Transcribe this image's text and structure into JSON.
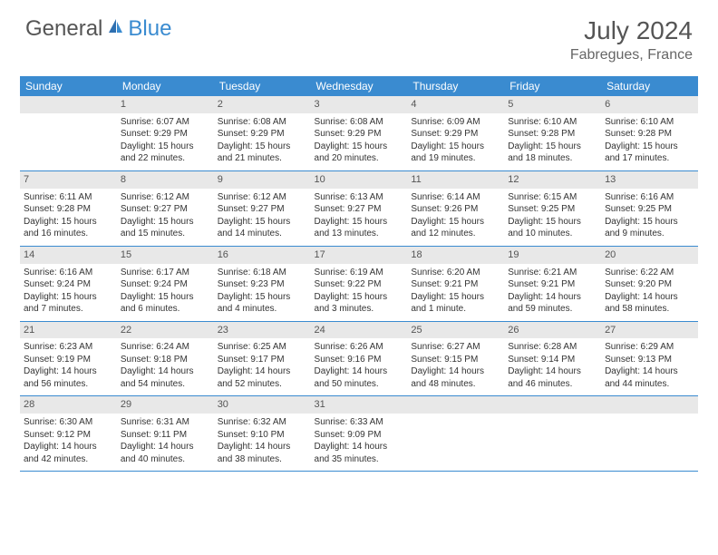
{
  "logo": {
    "general": "General",
    "blue": "Blue"
  },
  "title": "July 2024",
  "location": "Fabregues, France",
  "colors": {
    "header_bg": "#3a8bd0",
    "header_text": "#ffffff",
    "daynum_bg": "#e8e8e8",
    "border": "#3a8bd0",
    "body_text": "#333333",
    "title_text": "#555555"
  },
  "weekdays": [
    "Sunday",
    "Monday",
    "Tuesday",
    "Wednesday",
    "Thursday",
    "Friday",
    "Saturday"
  ],
  "weeks": [
    [
      {
        "n": "",
        "sr": "",
        "ss": "",
        "dl": ""
      },
      {
        "n": "1",
        "sr": "Sunrise: 6:07 AM",
        "ss": "Sunset: 9:29 PM",
        "dl": "Daylight: 15 hours and 22 minutes."
      },
      {
        "n": "2",
        "sr": "Sunrise: 6:08 AM",
        "ss": "Sunset: 9:29 PM",
        "dl": "Daylight: 15 hours and 21 minutes."
      },
      {
        "n": "3",
        "sr": "Sunrise: 6:08 AM",
        "ss": "Sunset: 9:29 PM",
        "dl": "Daylight: 15 hours and 20 minutes."
      },
      {
        "n": "4",
        "sr": "Sunrise: 6:09 AM",
        "ss": "Sunset: 9:29 PM",
        "dl": "Daylight: 15 hours and 19 minutes."
      },
      {
        "n": "5",
        "sr": "Sunrise: 6:10 AM",
        "ss": "Sunset: 9:28 PM",
        "dl": "Daylight: 15 hours and 18 minutes."
      },
      {
        "n": "6",
        "sr": "Sunrise: 6:10 AM",
        "ss": "Sunset: 9:28 PM",
        "dl": "Daylight: 15 hours and 17 minutes."
      }
    ],
    [
      {
        "n": "7",
        "sr": "Sunrise: 6:11 AM",
        "ss": "Sunset: 9:28 PM",
        "dl": "Daylight: 15 hours and 16 minutes."
      },
      {
        "n": "8",
        "sr": "Sunrise: 6:12 AM",
        "ss": "Sunset: 9:27 PM",
        "dl": "Daylight: 15 hours and 15 minutes."
      },
      {
        "n": "9",
        "sr": "Sunrise: 6:12 AM",
        "ss": "Sunset: 9:27 PM",
        "dl": "Daylight: 15 hours and 14 minutes."
      },
      {
        "n": "10",
        "sr": "Sunrise: 6:13 AM",
        "ss": "Sunset: 9:27 PM",
        "dl": "Daylight: 15 hours and 13 minutes."
      },
      {
        "n": "11",
        "sr": "Sunrise: 6:14 AM",
        "ss": "Sunset: 9:26 PM",
        "dl": "Daylight: 15 hours and 12 minutes."
      },
      {
        "n": "12",
        "sr": "Sunrise: 6:15 AM",
        "ss": "Sunset: 9:25 PM",
        "dl": "Daylight: 15 hours and 10 minutes."
      },
      {
        "n": "13",
        "sr": "Sunrise: 6:16 AM",
        "ss": "Sunset: 9:25 PM",
        "dl": "Daylight: 15 hours and 9 minutes."
      }
    ],
    [
      {
        "n": "14",
        "sr": "Sunrise: 6:16 AM",
        "ss": "Sunset: 9:24 PM",
        "dl": "Daylight: 15 hours and 7 minutes."
      },
      {
        "n": "15",
        "sr": "Sunrise: 6:17 AM",
        "ss": "Sunset: 9:24 PM",
        "dl": "Daylight: 15 hours and 6 minutes."
      },
      {
        "n": "16",
        "sr": "Sunrise: 6:18 AM",
        "ss": "Sunset: 9:23 PM",
        "dl": "Daylight: 15 hours and 4 minutes."
      },
      {
        "n": "17",
        "sr": "Sunrise: 6:19 AM",
        "ss": "Sunset: 9:22 PM",
        "dl": "Daylight: 15 hours and 3 minutes."
      },
      {
        "n": "18",
        "sr": "Sunrise: 6:20 AM",
        "ss": "Sunset: 9:21 PM",
        "dl": "Daylight: 15 hours and 1 minute."
      },
      {
        "n": "19",
        "sr": "Sunrise: 6:21 AM",
        "ss": "Sunset: 9:21 PM",
        "dl": "Daylight: 14 hours and 59 minutes."
      },
      {
        "n": "20",
        "sr": "Sunrise: 6:22 AM",
        "ss": "Sunset: 9:20 PM",
        "dl": "Daylight: 14 hours and 58 minutes."
      }
    ],
    [
      {
        "n": "21",
        "sr": "Sunrise: 6:23 AM",
        "ss": "Sunset: 9:19 PM",
        "dl": "Daylight: 14 hours and 56 minutes."
      },
      {
        "n": "22",
        "sr": "Sunrise: 6:24 AM",
        "ss": "Sunset: 9:18 PM",
        "dl": "Daylight: 14 hours and 54 minutes."
      },
      {
        "n": "23",
        "sr": "Sunrise: 6:25 AM",
        "ss": "Sunset: 9:17 PM",
        "dl": "Daylight: 14 hours and 52 minutes."
      },
      {
        "n": "24",
        "sr": "Sunrise: 6:26 AM",
        "ss": "Sunset: 9:16 PM",
        "dl": "Daylight: 14 hours and 50 minutes."
      },
      {
        "n": "25",
        "sr": "Sunrise: 6:27 AM",
        "ss": "Sunset: 9:15 PM",
        "dl": "Daylight: 14 hours and 48 minutes."
      },
      {
        "n": "26",
        "sr": "Sunrise: 6:28 AM",
        "ss": "Sunset: 9:14 PM",
        "dl": "Daylight: 14 hours and 46 minutes."
      },
      {
        "n": "27",
        "sr": "Sunrise: 6:29 AM",
        "ss": "Sunset: 9:13 PM",
        "dl": "Daylight: 14 hours and 44 minutes."
      }
    ],
    [
      {
        "n": "28",
        "sr": "Sunrise: 6:30 AM",
        "ss": "Sunset: 9:12 PM",
        "dl": "Daylight: 14 hours and 42 minutes."
      },
      {
        "n": "29",
        "sr": "Sunrise: 6:31 AM",
        "ss": "Sunset: 9:11 PM",
        "dl": "Daylight: 14 hours and 40 minutes."
      },
      {
        "n": "30",
        "sr": "Sunrise: 6:32 AM",
        "ss": "Sunset: 9:10 PM",
        "dl": "Daylight: 14 hours and 38 minutes."
      },
      {
        "n": "31",
        "sr": "Sunrise: 6:33 AM",
        "ss": "Sunset: 9:09 PM",
        "dl": "Daylight: 14 hours and 35 minutes."
      },
      {
        "n": "",
        "sr": "",
        "ss": "",
        "dl": ""
      },
      {
        "n": "",
        "sr": "",
        "ss": "",
        "dl": ""
      },
      {
        "n": "",
        "sr": "",
        "ss": "",
        "dl": ""
      }
    ]
  ]
}
